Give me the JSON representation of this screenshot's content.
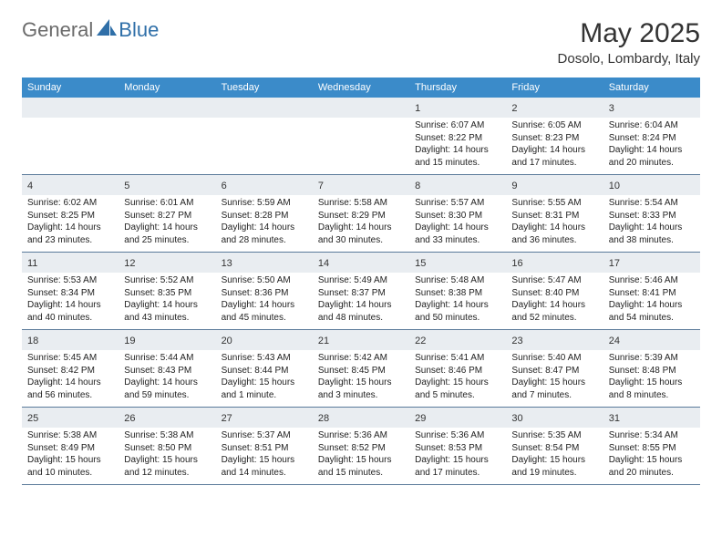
{
  "logo": {
    "general": "General",
    "blue": "Blue"
  },
  "title": "May 2025",
  "location": "Dosolo, Lombardy, Italy",
  "colors": {
    "header_bg": "#3b8bc9",
    "strip_bg": "#e9edf1",
    "border": "#5a7a9a",
    "logo_gray": "#6b6b6b",
    "logo_blue": "#2f6fa8"
  },
  "dayHeaders": [
    "Sunday",
    "Monday",
    "Tuesday",
    "Wednesday",
    "Thursday",
    "Friday",
    "Saturday"
  ],
  "blanksBefore": 4,
  "days": [
    {
      "n": 1,
      "sunrise": "6:07 AM",
      "sunset": "8:22 PM",
      "daylight": "14 hours and 15 minutes."
    },
    {
      "n": 2,
      "sunrise": "6:05 AM",
      "sunset": "8:23 PM",
      "daylight": "14 hours and 17 minutes."
    },
    {
      "n": 3,
      "sunrise": "6:04 AM",
      "sunset": "8:24 PM",
      "daylight": "14 hours and 20 minutes."
    },
    {
      "n": 4,
      "sunrise": "6:02 AM",
      "sunset": "8:25 PM",
      "daylight": "14 hours and 23 minutes."
    },
    {
      "n": 5,
      "sunrise": "6:01 AM",
      "sunset": "8:27 PM",
      "daylight": "14 hours and 25 minutes."
    },
    {
      "n": 6,
      "sunrise": "5:59 AM",
      "sunset": "8:28 PM",
      "daylight": "14 hours and 28 minutes."
    },
    {
      "n": 7,
      "sunrise": "5:58 AM",
      "sunset": "8:29 PM",
      "daylight": "14 hours and 30 minutes."
    },
    {
      "n": 8,
      "sunrise": "5:57 AM",
      "sunset": "8:30 PM",
      "daylight": "14 hours and 33 minutes."
    },
    {
      "n": 9,
      "sunrise": "5:55 AM",
      "sunset": "8:31 PM",
      "daylight": "14 hours and 36 minutes."
    },
    {
      "n": 10,
      "sunrise": "5:54 AM",
      "sunset": "8:33 PM",
      "daylight": "14 hours and 38 minutes."
    },
    {
      "n": 11,
      "sunrise": "5:53 AM",
      "sunset": "8:34 PM",
      "daylight": "14 hours and 40 minutes."
    },
    {
      "n": 12,
      "sunrise": "5:52 AM",
      "sunset": "8:35 PM",
      "daylight": "14 hours and 43 minutes."
    },
    {
      "n": 13,
      "sunrise": "5:50 AM",
      "sunset": "8:36 PM",
      "daylight": "14 hours and 45 minutes."
    },
    {
      "n": 14,
      "sunrise": "5:49 AM",
      "sunset": "8:37 PM",
      "daylight": "14 hours and 48 minutes."
    },
    {
      "n": 15,
      "sunrise": "5:48 AM",
      "sunset": "8:38 PM",
      "daylight": "14 hours and 50 minutes."
    },
    {
      "n": 16,
      "sunrise": "5:47 AM",
      "sunset": "8:40 PM",
      "daylight": "14 hours and 52 minutes."
    },
    {
      "n": 17,
      "sunrise": "5:46 AM",
      "sunset": "8:41 PM",
      "daylight": "14 hours and 54 minutes."
    },
    {
      "n": 18,
      "sunrise": "5:45 AM",
      "sunset": "8:42 PM",
      "daylight": "14 hours and 56 minutes."
    },
    {
      "n": 19,
      "sunrise": "5:44 AM",
      "sunset": "8:43 PM",
      "daylight": "14 hours and 59 minutes."
    },
    {
      "n": 20,
      "sunrise": "5:43 AM",
      "sunset": "8:44 PM",
      "daylight": "15 hours and 1 minute."
    },
    {
      "n": 21,
      "sunrise": "5:42 AM",
      "sunset": "8:45 PM",
      "daylight": "15 hours and 3 minutes."
    },
    {
      "n": 22,
      "sunrise": "5:41 AM",
      "sunset": "8:46 PM",
      "daylight": "15 hours and 5 minutes."
    },
    {
      "n": 23,
      "sunrise": "5:40 AM",
      "sunset": "8:47 PM",
      "daylight": "15 hours and 7 minutes."
    },
    {
      "n": 24,
      "sunrise": "5:39 AM",
      "sunset": "8:48 PM",
      "daylight": "15 hours and 8 minutes."
    },
    {
      "n": 25,
      "sunrise": "5:38 AM",
      "sunset": "8:49 PM",
      "daylight": "15 hours and 10 minutes."
    },
    {
      "n": 26,
      "sunrise": "5:38 AM",
      "sunset": "8:50 PM",
      "daylight": "15 hours and 12 minutes."
    },
    {
      "n": 27,
      "sunrise": "5:37 AM",
      "sunset": "8:51 PM",
      "daylight": "15 hours and 14 minutes."
    },
    {
      "n": 28,
      "sunrise": "5:36 AM",
      "sunset": "8:52 PM",
      "daylight": "15 hours and 15 minutes."
    },
    {
      "n": 29,
      "sunrise": "5:36 AM",
      "sunset": "8:53 PM",
      "daylight": "15 hours and 17 minutes."
    },
    {
      "n": 30,
      "sunrise": "5:35 AM",
      "sunset": "8:54 PM",
      "daylight": "15 hours and 19 minutes."
    },
    {
      "n": 31,
      "sunrise": "5:34 AM",
      "sunset": "8:55 PM",
      "daylight": "15 hours and 20 minutes."
    }
  ],
  "labels": {
    "sunrise": "Sunrise:",
    "sunset": "Sunset:",
    "daylight": "Daylight:"
  }
}
